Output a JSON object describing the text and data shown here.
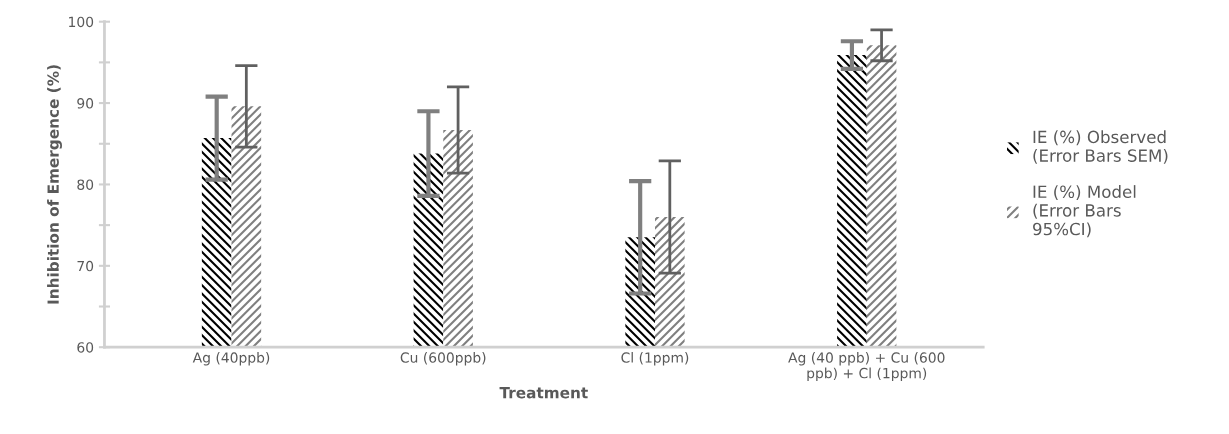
{
  "chart_data": {
    "type": "bar",
    "xlabel": "Treatment",
    "ylabel": "Inhibition of Emergence (%)",
    "categories": [
      "Ag (40ppb)",
      "Cu (600ppb)",
      "Cl (1ppm)",
      "Ag (40 ppb) + Cu (600\nppb) + Cl (1ppm)"
    ],
    "series": [
      {
        "name": "IE (%) Observed\n(Error Bars SEM)",
        "color": "#000000",
        "values": [
          85.7,
          83.8,
          73.5,
          95.9
        ],
        "errors": [
          5.1,
          5.2,
          6.9,
          1.7
        ]
      },
      {
        "name": "IE (%) Model\n(Error Bars\n95%CI)",
        "color": "#808080",
        "values": [
          89.6,
          86.7,
          76.0,
          97.1
        ],
        "errors": [
          5.0,
          5.3,
          6.9,
          1.9
        ]
      }
    ],
    "ylim": [
      60,
      100
    ],
    "yticks": [
      60,
      {
        "value": 65,
        "label": null
      },
      70,
      {
        "value": 75,
        "label": null
      },
      80,
      {
        "value": 85,
        "label": null
      },
      90,
      {
        "value": 95,
        "label": null
      },
      100
    ],
    "grid": false,
    "legend": "right"
  }
}
